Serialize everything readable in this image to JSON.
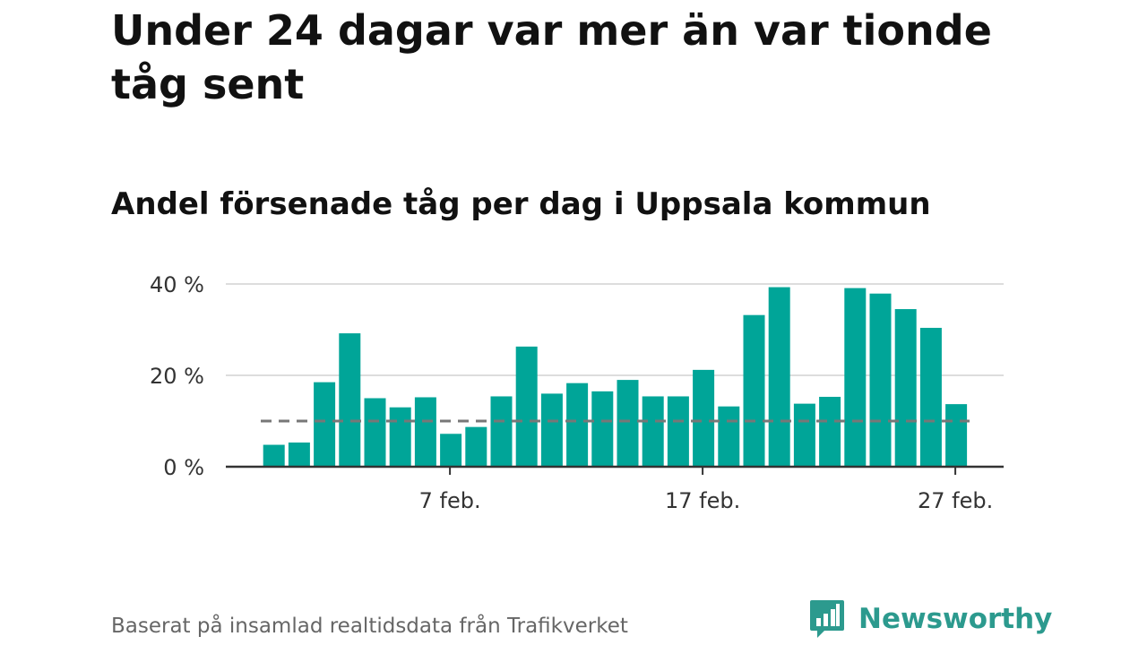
{
  "header": {
    "title": "Under 24 dagar var mer än var tionde tåg sent",
    "subtitle": "Andel försenade tåg per dag i Uppsala kommun"
  },
  "footer": {
    "source": "Baserat på insamlad realtidsdata från Trafikverket",
    "brand": "Newsworthy",
    "brand_icon": "bar-chart-speech-bubble-icon"
  },
  "colors": {
    "bar": "#00a598",
    "reference_line": "#777777",
    "grid": "#dddddd",
    "axis": "#333333",
    "brand": "#2c9a8e"
  },
  "chart_data": {
    "type": "bar",
    "categories": [
      "30 jan.",
      "31 jan.",
      "1 feb.",
      "2 feb.",
      "3 feb.",
      "4 feb.",
      "5 feb.",
      "6 feb.",
      "7 feb.",
      "8 feb.",
      "9 feb.",
      "10 feb.",
      "11 feb.",
      "12 feb.",
      "13 feb.",
      "14 feb.",
      "15 feb.",
      "16 feb.",
      "17 feb.",
      "18 feb.",
      "19 feb.",
      "20 feb.",
      "21 feb.",
      "22 feb.",
      "23 feb.",
      "24 feb.",
      "25 feb.",
      "26 feb.",
      "27 feb.",
      "28 feb."
    ],
    "values": [
      null,
      4.8,
      5.3,
      18.5,
      29.2,
      15.0,
      13.0,
      15.2,
      7.2,
      8.7,
      15.4,
      26.3,
      16.0,
      18.3,
      16.5,
      19.0,
      15.4,
      15.4,
      21.2,
      13.2,
      33.2,
      39.3,
      13.8,
      15.3,
      39.1,
      37.9,
      34.5,
      30.4,
      13.7,
      null
    ],
    "reference_value": 10,
    "x_tick_labels": [
      "7 feb.",
      "17 feb.",
      "27 feb."
    ],
    "x_tick_categories": [
      "7 feb.",
      "17 feb.",
      "27 feb."
    ],
    "y_tick_labels": [
      "0 %",
      "20 %",
      "40 %"
    ],
    "y_tick_values": [
      0,
      20,
      40
    ],
    "ylim": [
      0,
      40
    ],
    "grid": true,
    "xlabel": "",
    "ylabel": ""
  }
}
